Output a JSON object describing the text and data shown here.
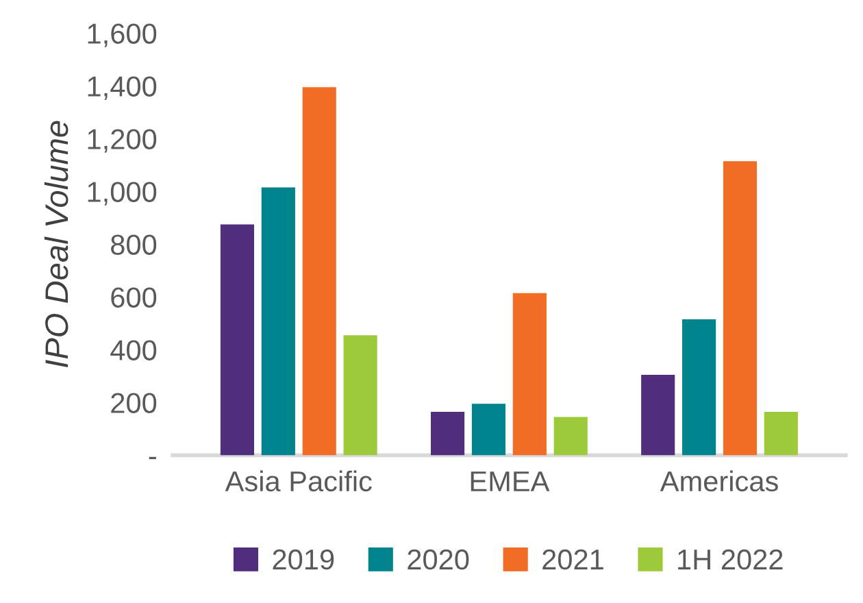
{
  "chart_data": {
    "type": "bar",
    "ylabel": "IPO Deal Volume",
    "categories": [
      "Asia Pacific",
      "EMEA",
      "Americas"
    ],
    "series": [
      {
        "name": "2019",
        "color": "#512d7e",
        "values": [
          875,
          165,
          305
        ]
      },
      {
        "name": "2020",
        "color": "#00838c",
        "values": [
          1015,
          195,
          515
        ]
      },
      {
        "name": "2021",
        "color": "#f16c24",
        "values": [
          1395,
          615,
          1115
        ]
      },
      {
        "name": "1H 2022",
        "color": "#9dca3b",
        "values": [
          455,
          145,
          165
        ]
      }
    ],
    "ylim": [
      0,
      1600
    ],
    "yticks": [
      {
        "value": 0,
        "label": "-"
      },
      200,
      400,
      600,
      800,
      {
        "value": 1000,
        "label": "1,000"
      },
      {
        "value": 1200,
        "label": "1,200"
      },
      {
        "value": 1400,
        "label": "1,400"
      },
      {
        "value": 1600,
        "label": "1,600"
      }
    ],
    "grid": false,
    "legend": "bottom"
  }
}
